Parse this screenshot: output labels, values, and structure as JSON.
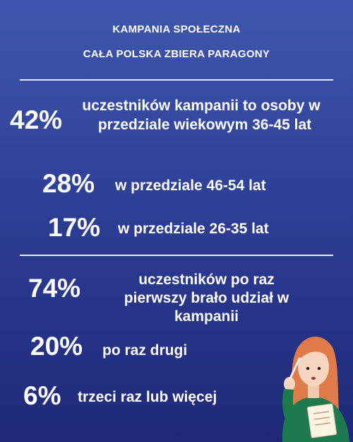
{
  "header": {
    "line1": "KAMPANIA SPOŁECZNA",
    "line2": "CAŁA POLSKA ZBIERA PARAGONY"
  },
  "age_stats": [
    {
      "percent": "42%",
      "line1": "uczestników kampanii to osoby w",
      "line2": "przedziale wiekowym 36-45 lat"
    },
    {
      "percent": "28%",
      "text": "w przedziale 46-54 lat"
    },
    {
      "percent": "17%",
      "text": "w przedziale 26-35 lat"
    }
  ],
  "participation_stats": [
    {
      "percent": "74%",
      "line1": "uczestników po raz",
      "line2": "pierwszy brało udział w",
      "line3": "kampanii"
    },
    {
      "percent": "20%",
      "text": "po raz drugi"
    },
    {
      "percent": "6%",
      "text": "trzeci raz lub więcej"
    }
  ],
  "illustration": {
    "icon": "woman-writing-list-illustration",
    "colors": {
      "hair": "#e07a48",
      "skin": "#f6d6c0",
      "sweater": "#1d7a4e",
      "paper": "#fbf4e2"
    }
  }
}
